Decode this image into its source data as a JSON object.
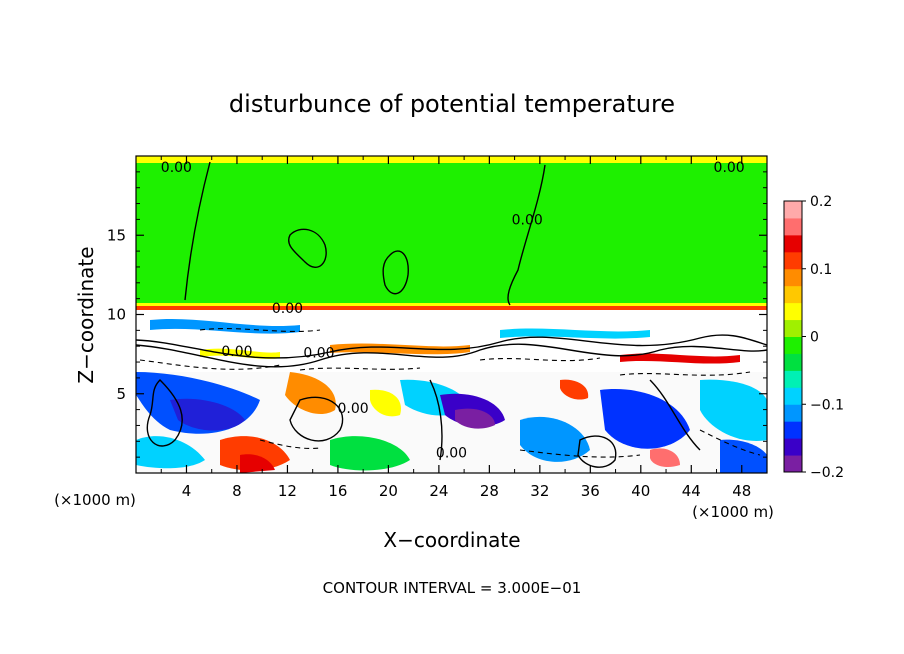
{
  "chart_data": {
    "type": "heatmap",
    "title": "disturbunce of potential temperature",
    "xlabel": "X−coordinate",
    "ylabel": "Z−coordinate",
    "x_unit": "(×1000 m)",
    "y_unit": "(×1000 m)",
    "x_ticks": [
      4,
      8,
      12,
      16,
      20,
      24,
      28,
      32,
      36,
      40,
      44,
      48
    ],
    "y_ticks": [
      5,
      10,
      15
    ],
    "xlim": [
      0,
      50
    ],
    "ylim": [
      0,
      20
    ],
    "footer": "CONTOUR INTERVAL = 3.000E−01",
    "colorbar": {
      "ticks": [
        {
          "value": 0.2,
          "label": "0.2"
        },
        {
          "value": 0.1,
          "label": "0.1"
        },
        {
          "value": 0,
          "label": "0"
        },
        {
          "value": -0.1,
          "label": "−0.1"
        },
        {
          "value": -0.2,
          "label": "−0.2"
        }
      ],
      "min": -0.2,
      "max": 0.2,
      "colors": [
        "#7a1fa2",
        "#3a00c8",
        "#0032ff",
        "#0096ff",
        "#00d2ff",
        "#00f0b4",
        "#00e040",
        "#1ef000",
        "#a0f000",
        "#ffff00",
        "#ffc800",
        "#ff8c00",
        "#ff3c00",
        "#e60000",
        "#ff6e6e",
        "#ffaaaa"
      ]
    },
    "contour_labels": [
      {
        "text": "0.00",
        "x": 3.2,
        "y": 19.3
      },
      {
        "text": "0.00",
        "x": 47.0,
        "y": 19.3
      },
      {
        "text": "0.00",
        "x": 31.0,
        "y": 16.0
      },
      {
        "text": "0.00",
        "x": 12.0,
        "y": 10.4
      },
      {
        "text": "0.00",
        "x": 8.0,
        "y": 7.7
      },
      {
        "text": "0.00",
        "x": 14.5,
        "y": 7.6
      },
      {
        "text": "0.00",
        "x": 17.2,
        "y": 4.1
      },
      {
        "text": "0.00",
        "x": 25.0,
        "y": 1.3
      }
    ],
    "regions": {
      "upper_layer": {
        "z_range": [
          10.5,
          20
        ],
        "value": 0.0
      },
      "mixing_layer": {
        "z_range": [
          6,
          10.5
        ]
      },
      "lower_layer": {
        "z_range": [
          0,
          6
        ]
      }
    }
  }
}
